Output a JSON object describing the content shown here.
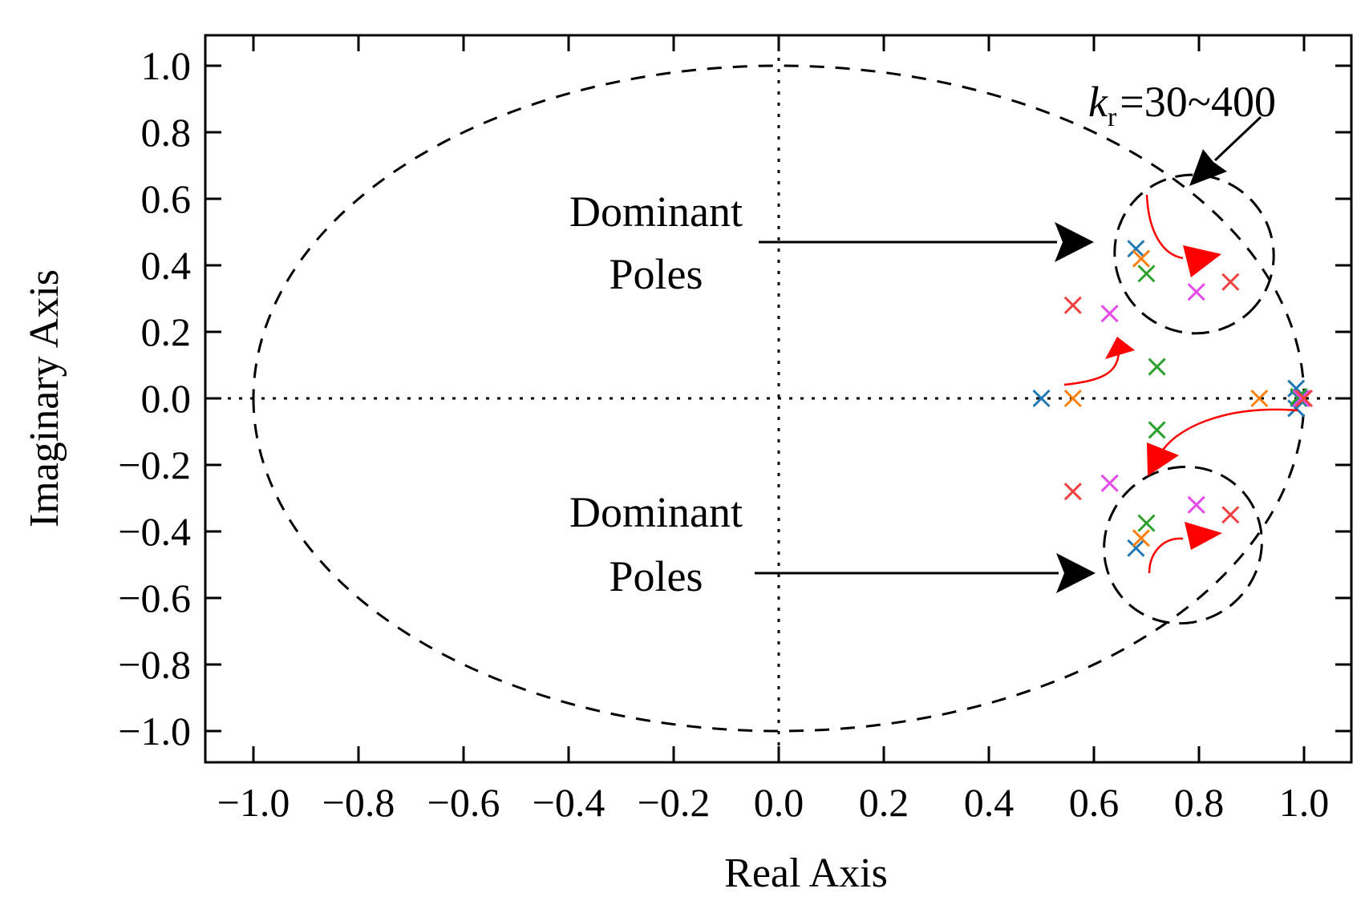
{
  "chart_data": {
    "type": "scatter",
    "title": "",
    "xlabel": "Real Axis",
    "ylabel": "Imaginary Axis",
    "xlim": [
      -1.1,
      1.1
    ],
    "ylim": [
      -1.1,
      1.1
    ],
    "x_ticks": [
      -1.0,
      -0.8,
      -0.6,
      -0.4,
      -0.2,
      0.0,
      0.2,
      0.4,
      0.6,
      0.8,
      1.0
    ],
    "y_ticks": [
      -1.0,
      -0.8,
      -0.6,
      -0.4,
      -0.2,
      0.0,
      0.2,
      0.4,
      0.6,
      0.8,
      1.0
    ],
    "x_tick_labels": [
      "−1.0",
      "−0.8",
      "−0.6",
      "−0.4",
      "−0.2",
      "0.0",
      "0.2",
      "0.4",
      "0.6",
      "0.8",
      "1.0"
    ],
    "y_tick_labels": [
      "−1.0",
      "−0.8",
      "−0.6",
      "−0.4",
      "−0.2",
      "0.0",
      "0.2",
      "0.4",
      "0.6",
      "0.8",
      "1.0"
    ],
    "grid": false,
    "unit_circle": {
      "style": "dashed",
      "radius": 1.0
    },
    "reference_lines": {
      "style": "dotted",
      "x": 0.0,
      "y": 0.0
    },
    "series": [
      {
        "color": "#1f77b4",
        "points": [
          [
            0.5,
            0.0
          ],
          [
            0.68,
            0.45
          ],
          [
            0.68,
            -0.45
          ],
          [
            0.985,
            0.03
          ],
          [
            0.985,
            -0.03
          ],
          [
            0.99,
            0.0
          ]
        ]
      },
      {
        "color": "#ff7f0e",
        "points": [
          [
            0.56,
            0.0
          ],
          [
            0.69,
            0.42
          ],
          [
            0.69,
            -0.42
          ],
          [
            0.915,
            0.0
          ],
          [
            0.995,
            0.0
          ]
        ]
      },
      {
        "color": "#2ca02c",
        "points": [
          [
            0.7,
            0.375
          ],
          [
            0.7,
            -0.375
          ],
          [
            0.72,
            0.095
          ],
          [
            0.72,
            -0.095
          ],
          [
            0.99,
            0.005
          ]
        ]
      },
      {
        "color": "#e44be8",
        "points": [
          [
            0.63,
            0.255
          ],
          [
            0.63,
            -0.255
          ],
          [
            0.795,
            0.32
          ],
          [
            0.795,
            -0.32
          ],
          [
            0.995,
            0.0
          ]
        ]
      },
      {
        "color": "#f04040",
        "points": [
          [
            0.56,
            0.28
          ],
          [
            0.56,
            -0.28
          ],
          [
            0.86,
            0.35
          ],
          [
            0.86,
            -0.35
          ],
          [
            1.0,
            0.0
          ]
        ]
      }
    ],
    "annotations": {
      "dominant_upper": [
        "Dominant",
        "Poles"
      ],
      "dominant_lower": [
        "Dominant",
        "Poles"
      ],
      "gain_symbol": "k",
      "gain_subscript": "r",
      "gain_range": "=30~400"
    },
    "colors": {
      "arrows_black": "#000000",
      "arrows_red": "#ff0000",
      "frame": "#000000"
    }
  }
}
